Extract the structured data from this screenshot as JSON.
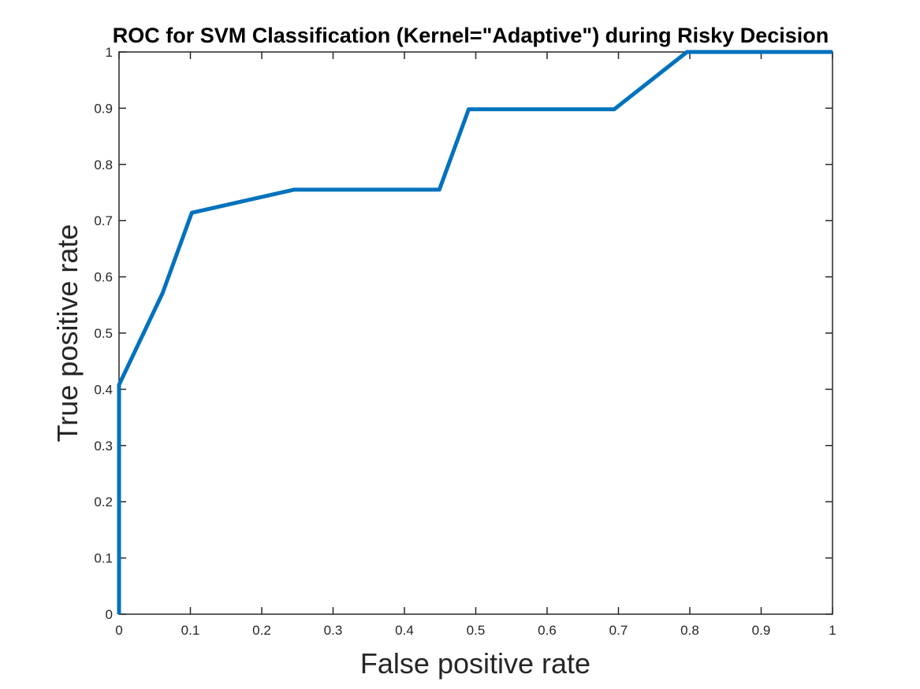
{
  "chart_data": {
    "type": "line",
    "title": "ROC for SVM Classification (Kernel=\"Adaptive\") during Risky Decision",
    "xlabel": "False positive rate",
    "ylabel": "True positive rate",
    "xlim": [
      0,
      1
    ],
    "ylim": [
      0,
      1
    ],
    "xticks": [
      "0",
      "0.1",
      "0.2",
      "0.3",
      "0.4",
      "0.5",
      "0.6",
      "0.7",
      "0.8",
      "0.9",
      "1"
    ],
    "yticks": [
      "0",
      "0.1",
      "0.2",
      "0.3",
      "0.4",
      "0.5",
      "0.6",
      "0.7",
      "0.8",
      "0.9",
      "1"
    ],
    "grid": false,
    "series": [
      {
        "color": "#0072BD",
        "x": [
          0,
          0,
          0.061,
          0.102,
          0.245,
          0.449,
          0.49,
          0.694,
          0.796,
          1.0
        ],
        "y": [
          0,
          0.408,
          0.571,
          0.714,
          0.755,
          0.755,
          0.898,
          0.898,
          1.0,
          1.0
        ]
      }
    ]
  }
}
